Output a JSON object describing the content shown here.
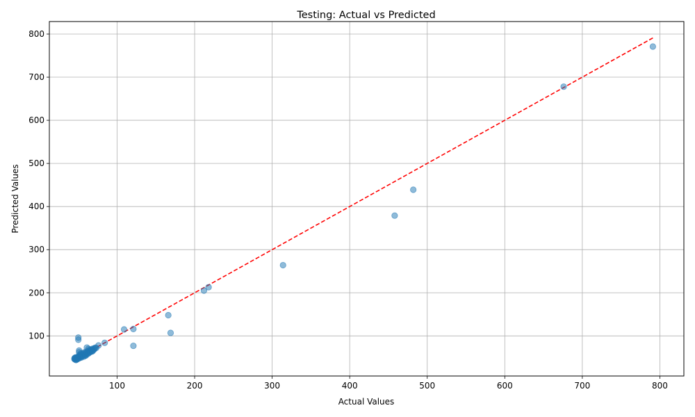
{
  "chart_data": {
    "type": "scatter",
    "title": "Testing: Actual vs Predicted",
    "xlabel": "Actual Values",
    "ylabel": "Predicted Values",
    "xlim": [
      12.6,
      831.0
    ],
    "ylim": [
      7.0,
      829.0
    ],
    "xticks": [
      100,
      200,
      300,
      400,
      500,
      600,
      700,
      800
    ],
    "yticks": [
      100,
      200,
      300,
      400,
      500,
      600,
      700,
      800
    ],
    "grid": true,
    "point_color": "#1f77b4",
    "point_alpha": 0.5,
    "reference_line": {
      "style": "dashed",
      "color": "#ff0000",
      "from": [
        46,
        46
      ],
      "to": [
        791,
        791
      ]
    },
    "points": [
      [
        791,
        771
      ],
      [
        676,
        678
      ],
      [
        482,
        439
      ],
      [
        458,
        379
      ],
      [
        314,
        264
      ],
      [
        218,
        213
      ],
      [
        212,
        205
      ],
      [
        166,
        148
      ],
      [
        169,
        107
      ],
      [
        121,
        116
      ],
      [
        109,
        115
      ],
      [
        121,
        77
      ],
      [
        84,
        84
      ],
      [
        76,
        78
      ],
      [
        50,
        96
      ],
      [
        50,
        91
      ],
      [
        51,
        66
      ],
      [
        51,
        62
      ],
      [
        61,
        73
      ],
      [
        63,
        70
      ],
      [
        65,
        68
      ],
      [
        68,
        70
      ],
      [
        70,
        71
      ],
      [
        72,
        73
      ],
      [
        66,
        66
      ],
      [
        64,
        64
      ],
      [
        62,
        62
      ],
      [
        60,
        60
      ],
      [
        58,
        58
      ],
      [
        60,
        55
      ],
      [
        56,
        56
      ],
      [
        55,
        58
      ],
      [
        54,
        54
      ],
      [
        53,
        57
      ],
      [
        52,
        52
      ],
      [
        50,
        50
      ],
      [
        49,
        49
      ],
      [
        48,
        48
      ],
      [
        47,
        47
      ],
      [
        46,
        46
      ],
      [
        46,
        48
      ],
      [
        47,
        50
      ],
      [
        48,
        46
      ],
      [
        49,
        51
      ],
      [
        50,
        47
      ],
      [
        51,
        53
      ],
      [
        52,
        49
      ],
      [
        53,
        51
      ],
      [
        55,
        53
      ],
      [
        57,
        55
      ],
      [
        59,
        57
      ],
      [
        61,
        58
      ],
      [
        62,
        65
      ],
      [
        64,
        61
      ],
      [
        66,
        63
      ],
      [
        67,
        68
      ],
      [
        69,
        66
      ],
      [
        70,
        68
      ],
      [
        58,
        62
      ],
      [
        56,
        60
      ],
      [
        54,
        50
      ],
      [
        46,
        45
      ],
      [
        47,
        44
      ],
      [
        48,
        45
      ],
      [
        45,
        46
      ],
      [
        45,
        48
      ],
      [
        46,
        50
      ],
      [
        47,
        49
      ],
      [
        49,
        47
      ],
      [
        51,
        55
      ],
      [
        53,
        59
      ],
      [
        57,
        52
      ],
      [
        59,
        54
      ],
      [
        60,
        62
      ],
      [
        63,
        59
      ],
      [
        65,
        63
      ],
      [
        67,
        65
      ],
      [
        71,
        70
      ],
      [
        73,
        72
      ],
      [
        68,
        64
      ]
    ]
  }
}
